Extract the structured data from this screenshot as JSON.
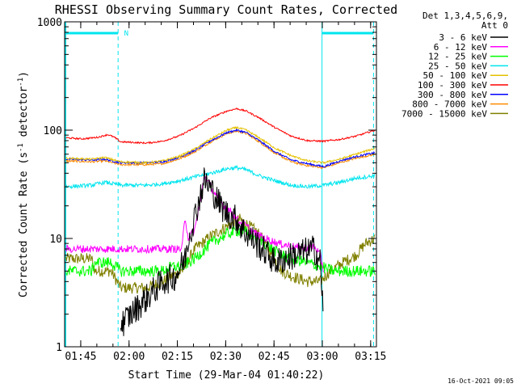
{
  "chart_data": {
    "type": "line",
    "title": "RHESSI Observing Summary Count Rates, Corrected",
    "xlabel": "Start Time (29-Mar-04 01:40:22)",
    "ylabel_main": "Corrected Count Rate (s",
    "ylabel_sup1": "-1",
    "ylabel_mid": " detector",
    "ylabel_sup2": "-1",
    "ylabel_end": ")",
    "timestamp": "16-Oct-2021 09:05",
    "yscale": "log",
    "ylim": [
      1,
      1000
    ],
    "xlim_minutes": [
      -0.4,
      96.4
    ],
    "x_tick_minutes": [
      4.6,
      19.6,
      34.6,
      49.6,
      64.6,
      79.6,
      94.6
    ],
    "x_tick_labels": [
      "01:45",
      "02:00",
      "02:15",
      "02:30",
      "02:45",
      "03:00",
      "03:15"
    ],
    "y_ticks": [
      1,
      10,
      100,
      1000
    ],
    "y_tick_labels": [
      "1",
      "10",
      "100",
      "1000"
    ],
    "legend_header": [
      "Det 1,3,4,5,6,9,",
      "Att 0"
    ],
    "legend_position": "outside-right",
    "flags": [
      {
        "label": "N",
        "start_min": 0,
        "end_min": 16.2,
        "color": "#00e5ee"
      },
      {
        "label": "",
        "start_min": 79.5,
        "end_min": 95.5,
        "color": "#00e5ee"
      }
    ],
    "night_boundaries_min": [
      16.2,
      95.5
    ],
    "day_boundary_min": 79.5,
    "series": [
      {
        "name": "3 - 6 keV",
        "color": "#000000",
        "keypoints": [
          [
            17,
            1.6
          ],
          [
            30,
            4.0
          ],
          [
            34,
            4.5
          ],
          [
            37,
            6.5
          ],
          [
            38,
            10
          ],
          [
            40,
            16
          ],
          [
            43,
            35
          ],
          [
            46,
            26
          ],
          [
            48,
            20
          ],
          [
            50,
            17
          ],
          [
            53,
            15
          ],
          [
            55,
            12
          ],
          [
            57,
            10.5
          ],
          [
            60,
            8.5
          ],
          [
            63,
            7
          ],
          [
            65,
            6
          ],
          [
            68,
            6.5
          ],
          [
            71,
            7
          ],
          [
            74,
            7.5
          ],
          [
            77,
            8
          ],
          [
            79,
            6
          ],
          [
            80,
            1.8
          ]
        ]
      },
      {
        "name": "6 - 12 keV",
        "color": "#ff00ff",
        "keypoints": [
          [
            0,
            8
          ],
          [
            15,
            8
          ],
          [
            17,
            8
          ],
          [
            25,
            8
          ],
          [
            28,
            8
          ],
          [
            33,
            8
          ],
          [
            36,
            8
          ],
          [
            37,
            16
          ],
          [
            38,
            10
          ],
          [
            40,
            12
          ],
          [
            42,
            25
          ],
          [
            43,
            38
          ],
          [
            45,
            30
          ],
          [
            47,
            24
          ],
          [
            49,
            20
          ],
          [
            51,
            18
          ],
          [
            53,
            15
          ],
          [
            56,
            13
          ],
          [
            59,
            11
          ],
          [
            62,
            10
          ],
          [
            66,
            9
          ],
          [
            70,
            8.5
          ],
          [
            74,
            8
          ],
          [
            77,
            8.5
          ],
          [
            79,
            7
          ],
          [
            80,
            5
          ]
        ]
      },
      {
        "name": "12 - 25 keV",
        "color": "#00ff00",
        "keypoints": [
          [
            0,
            5
          ],
          [
            8,
            5
          ],
          [
            9,
            6
          ],
          [
            14,
            6
          ],
          [
            17,
            5
          ],
          [
            26,
            5
          ],
          [
            30,
            5
          ],
          [
            33,
            5.5
          ],
          [
            36,
            5.5
          ],
          [
            40,
            6.5
          ],
          [
            45,
            9
          ],
          [
            50,
            11
          ],
          [
            54,
            12
          ],
          [
            57,
            11
          ],
          [
            60,
            10
          ],
          [
            64,
            8
          ],
          [
            67,
            7
          ],
          [
            70,
            6.5
          ],
          [
            75,
            6
          ],
          [
            79,
            5.5
          ],
          [
            83,
            5
          ],
          [
            87,
            5
          ],
          [
            96,
            5
          ]
        ]
      },
      {
        "name": "25 - 50 keV",
        "color": "#00e5ee",
        "keypoints": [
          [
            0,
            30
          ],
          [
            8,
            31
          ],
          [
            12,
            33
          ],
          [
            17,
            31
          ],
          [
            25,
            31
          ],
          [
            30,
            32
          ],
          [
            35,
            34
          ],
          [
            40,
            37
          ],
          [
            45,
            40
          ],
          [
            50,
            44
          ],
          [
            53,
            45
          ],
          [
            56,
            43
          ],
          [
            60,
            38
          ],
          [
            65,
            34
          ],
          [
            70,
            31
          ],
          [
            75,
            30
          ],
          [
            80,
            31
          ],
          [
            85,
            33
          ],
          [
            90,
            36
          ],
          [
            96,
            38
          ]
        ]
      },
      {
        "name": "50 - 100 keV",
        "color": "#e5c000",
        "keypoints": [
          [
            0,
            55
          ],
          [
            8,
            54
          ],
          [
            12,
            56
          ],
          [
            17,
            51
          ],
          [
            25,
            50
          ],
          [
            30,
            52
          ],
          [
            35,
            57
          ],
          [
            40,
            67
          ],
          [
            45,
            83
          ],
          [
            50,
            100
          ],
          [
            53,
            106
          ],
          [
            56,
            100
          ],
          [
            60,
            85
          ],
          [
            65,
            68
          ],
          [
            70,
            58
          ],
          [
            75,
            52
          ],
          [
            80,
            50
          ],
          [
            85,
            54
          ],
          [
            90,
            60
          ],
          [
            96,
            68
          ]
        ]
      },
      {
        "name": "100 - 300 keV",
        "color": "#ff0000",
        "keypoints": [
          [
            0,
            85
          ],
          [
            5,
            83
          ],
          [
            10,
            86
          ],
          [
            13,
            91
          ],
          [
            15,
            86
          ],
          [
            17,
            78
          ],
          [
            25,
            76
          ],
          [
            30,
            79
          ],
          [
            35,
            88
          ],
          [
            40,
            105
          ],
          [
            45,
            130
          ],
          [
            50,
            150
          ],
          [
            53,
            158
          ],
          [
            56,
            150
          ],
          [
            60,
            130
          ],
          [
            65,
            105
          ],
          [
            70,
            88
          ],
          [
            75,
            80
          ],
          [
            80,
            79
          ],
          [
            85,
            82
          ],
          [
            90,
            88
          ],
          [
            96,
            100
          ]
        ]
      },
      {
        "name": "300 - 800 keV",
        "color": "#0000ff",
        "keypoints": [
          [
            0,
            54
          ],
          [
            8,
            53
          ],
          [
            12,
            54
          ],
          [
            17,
            50
          ],
          [
            25,
            50
          ],
          [
            30,
            51
          ],
          [
            35,
            56
          ],
          [
            40,
            65
          ],
          [
            45,
            80
          ],
          [
            50,
            95
          ],
          [
            53,
            100
          ],
          [
            56,
            95
          ],
          [
            60,
            80
          ],
          [
            65,
            63
          ],
          [
            70,
            53
          ],
          [
            75,
            49
          ],
          [
            80,
            46
          ],
          [
            85,
            52
          ],
          [
            90,
            57
          ],
          [
            96,
            62
          ]
        ]
      },
      {
        "name": "800 - 7000 keV",
        "color": "#ff8c00",
        "keypoints": [
          [
            0,
            52
          ],
          [
            8,
            51
          ],
          [
            12,
            52
          ],
          [
            17,
            48
          ],
          [
            25,
            48
          ],
          [
            30,
            49
          ],
          [
            35,
            54
          ],
          [
            40,
            63
          ],
          [
            45,
            78
          ],
          [
            50,
            93
          ],
          [
            53,
            98
          ],
          [
            56,
            93
          ],
          [
            60,
            78
          ],
          [
            65,
            61
          ],
          [
            70,
            51
          ],
          [
            75,
            47
          ],
          [
            80,
            45
          ],
          [
            85,
            50
          ],
          [
            90,
            55
          ],
          [
            96,
            60
          ]
        ]
      },
      {
        "name": "7000 - 15000 keV",
        "color": "#808000",
        "keypoints": [
          [
            0,
            6.5
          ],
          [
            8,
            6.5
          ],
          [
            9,
            5
          ],
          [
            14,
            5
          ],
          [
            17,
            3.5
          ],
          [
            25,
            3.5
          ],
          [
            30,
            4
          ],
          [
            33,
            4.5
          ],
          [
            36,
            5
          ],
          [
            40,
            8
          ],
          [
            45,
            10.5
          ],
          [
            50,
            13
          ],
          [
            54,
            15
          ],
          [
            57,
            13
          ],
          [
            60,
            11
          ],
          [
            64,
            7
          ],
          [
            67,
            5
          ],
          [
            70,
            4.5
          ],
          [
            75,
            4
          ],
          [
            79,
            4
          ],
          [
            82,
            5
          ],
          [
            86,
            6
          ],
          [
            90,
            7
          ],
          [
            93,
            9
          ],
          [
            96,
            10
          ]
        ]
      }
    ]
  }
}
